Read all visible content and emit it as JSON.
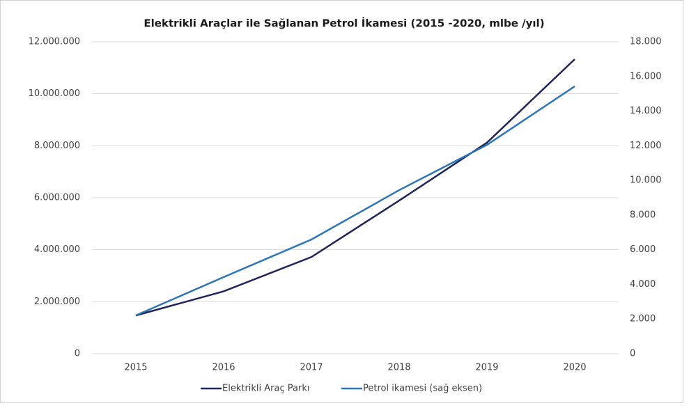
{
  "chart_data": {
    "type": "line",
    "title": "Elektrikli Araçlar ile Sağlanan Petrol İkamesi (2015 -2020, mlbe /yıl)",
    "categories": [
      "2015",
      "2016",
      "2017",
      "2018",
      "2019",
      "2020"
    ],
    "series": [
      {
        "name": "Elektrikli Araç Parkı",
        "color": "#1f2459",
        "values": [
          1470000,
          2400000,
          3720000,
          5890000,
          8120000,
          11330000
        ]
      },
      {
        "name": "Petrol ikamesi (sağ eksen)",
        "color": "#2e75b6",
        "axis": "y2",
        "values": [
          2210,
          4420,
          6590,
          9440,
          12050,
          15430
        ]
      }
    ],
    "ylim": [
      0,
      12000000
    ],
    "yticks": [
      0,
      {
        "value": 2000000,
        "label": "2.000.000"
      },
      {
        "value": 4000000,
        "label": "4.000.000"
      },
      {
        "value": 6000000,
        "label": "6.000.000"
      },
      {
        "value": 8000000,
        "label": "8.000.000"
      },
      {
        "value": 10000000,
        "label": "10.000.000"
      },
      {
        "value": 12000000,
        "label": "12.000.000"
      }
    ],
    "y2lim": [
      0,
      18000
    ],
    "y2ticks": [
      0,
      {
        "value": 2000,
        "label": "2.000"
      },
      {
        "value": 4000,
        "label": "4.000"
      },
      {
        "value": 6000,
        "label": "6.000"
      },
      {
        "value": 8000,
        "label": "8.000"
      },
      {
        "value": 10000,
        "label": "10.000"
      },
      {
        "value": 12000,
        "label": "12.000"
      },
      {
        "value": 14000,
        "label": "14.000"
      },
      {
        "value": 16000,
        "label": "16.000"
      },
      {
        "value": 18000,
        "label": "18.000"
      }
    ],
    "grid": true,
    "legend": "bottom"
  }
}
